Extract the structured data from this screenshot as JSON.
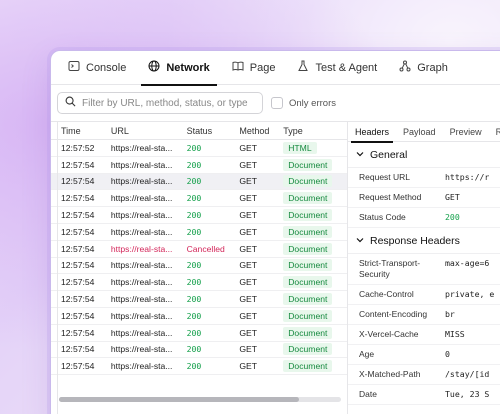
{
  "tabs": [
    {
      "label": "Console",
      "icon": "terminal-icon"
    },
    {
      "label": "Network",
      "icon": "globe-icon"
    },
    {
      "label": "Page",
      "icon": "book-icon"
    },
    {
      "label": "Test & Agent",
      "icon": "flask-icon"
    },
    {
      "label": "Graph",
      "icon": "graph-icon"
    }
  ],
  "filter": {
    "placeholder": "Filter by URL, method, status, or type",
    "only_errors_label": "Only errors"
  },
  "table": {
    "headers": {
      "time": "Time",
      "url": "URL",
      "status": "Status",
      "method": "Method",
      "type": "Type"
    },
    "rows": [
      {
        "time": "12:57:52",
        "url": "https://real-sta...",
        "status": "200",
        "method": "GET",
        "type": "HTML"
      },
      {
        "time": "12:57:54",
        "url": "https://real-sta...",
        "status": "200",
        "method": "GET",
        "type": "Document"
      },
      {
        "time": "12:57:54",
        "url": "https://real-sta...",
        "status": "200",
        "method": "GET",
        "type": "Document"
      },
      {
        "time": "12:57:54",
        "url": "https://real-sta...",
        "status": "200",
        "method": "GET",
        "type": "Document"
      },
      {
        "time": "12:57:54",
        "url": "https://real-sta...",
        "status": "200",
        "method": "GET",
        "type": "Document"
      },
      {
        "time": "12:57:54",
        "url": "https://real-sta...",
        "status": "200",
        "method": "GET",
        "type": "Document"
      },
      {
        "time": "12:57:54",
        "url": "https://real-sta...",
        "status": "Cancelled",
        "method": "GET",
        "type": "Document"
      },
      {
        "time": "12:57:54",
        "url": "https://real-sta...",
        "status": "200",
        "method": "GET",
        "type": "Document"
      },
      {
        "time": "12:57:54",
        "url": "https://real-sta...",
        "status": "200",
        "method": "GET",
        "type": "Document"
      },
      {
        "time": "12:57:54",
        "url": "https://real-sta...",
        "status": "200",
        "method": "GET",
        "type": "Document"
      },
      {
        "time": "12:57:54",
        "url": "https://real-sta...",
        "status": "200",
        "method": "GET",
        "type": "Document"
      },
      {
        "time": "12:57:54",
        "url": "https://real-sta...",
        "status": "200",
        "method": "GET",
        "type": "Document"
      },
      {
        "time": "12:57:54",
        "url": "https://real-sta...",
        "status": "200",
        "method": "GET",
        "type": "Document"
      },
      {
        "time": "12:57:54",
        "url": "https://real-sta...",
        "status": "200",
        "method": "GET",
        "type": "Document"
      }
    ]
  },
  "details": {
    "tabs": [
      "Headers",
      "Payload",
      "Preview",
      "Re"
    ],
    "general_title": "General",
    "general": {
      "request_url_key": "Request URL",
      "request_url_val": "https://r",
      "request_method_key": "Request Method",
      "request_method_val": "GET",
      "status_code_key": "Status Code",
      "status_code_val": "200"
    },
    "response_title": "Response Headers",
    "response": {
      "sts_key": "Strict-Transport-Security",
      "sts_val": "max-age=6",
      "cache_key": "Cache-Control",
      "cache_val": "private, e",
      "enc_key": "Content-Encoding",
      "enc_val": "br",
      "vcache_key": "X-Vercel-Cache",
      "vcache_val": "MISS",
      "age_key": "Age",
      "age_val": "0",
      "path_key": "X-Matched-Path",
      "path_val": "/stay/[id",
      "date_key": "Date",
      "date_val": "Tue, 23 S"
    }
  },
  "colors": {
    "success": "#14a04b",
    "error": "#d3265a",
    "accent_border": "#c9b9ec"
  }
}
